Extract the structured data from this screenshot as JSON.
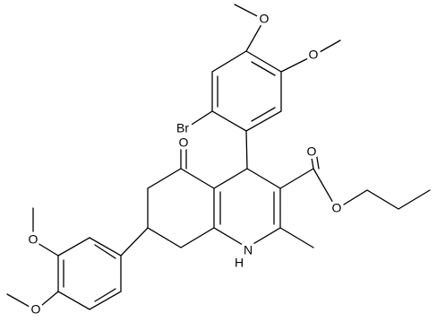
{
  "atoms": [
    "O",
    "O",
    "Br",
    "O",
    "O",
    "O",
    "O",
    "O",
    "N",
    "H"
  ]
}
